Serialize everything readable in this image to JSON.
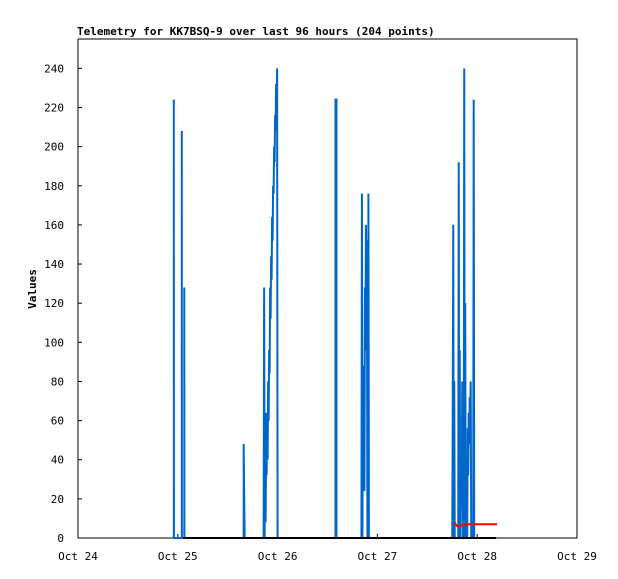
{
  "chart_data": {
    "type": "line",
    "title": "Telemetry for KK7BSQ-9 over last 96 hours (204 points)",
    "xlabel": "",
    "ylabel": "Values",
    "xlim": [
      "Oct 24",
      "Oct 29"
    ],
    "x_ticks": [
      "Oct 24",
      "Oct 25",
      "Oct 26",
      "Oct 27",
      "Oct 28",
      "Oct 29"
    ],
    "ylim": [
      0,
      255
    ],
    "y_ticks": [
      0,
      20,
      40,
      60,
      80,
      100,
      120,
      140,
      160,
      180,
      200,
      220,
      240
    ],
    "grid": false,
    "colors": {
      "series1": "#0066cc",
      "series2": "#000000",
      "series3": "#ff0000"
    },
    "series": [
      {
        "values": [
          {
            "x": 24.96,
            "y": 0
          },
          {
            "x": 24.96,
            "y": 224
          },
          {
            "x": 24.961,
            "y": 0
          },
          {
            "x": 25.04,
            "y": 0
          },
          {
            "x": 25.04,
            "y": 208
          },
          {
            "x": 25.041,
            "y": 0
          },
          {
            "x": 25.065,
            "y": 0
          },
          {
            "x": 25.065,
            "y": 128
          },
          {
            "x": 25.066,
            "y": 0
          },
          {
            "x": 25.66,
            "y": 0
          },
          {
            "x": 25.66,
            "y": 48
          },
          {
            "x": 25.665,
            "y": 24
          },
          {
            "x": 25.67,
            "y": 0
          },
          {
            "x": 25.86,
            "y": 0
          },
          {
            "x": 25.865,
            "y": 128
          },
          {
            "x": 25.87,
            "y": 0
          },
          {
            "x": 25.875,
            "y": 64
          },
          {
            "x": 25.88,
            "y": 8
          },
          {
            "x": 25.885,
            "y": 48
          },
          {
            "x": 25.89,
            "y": 32
          },
          {
            "x": 25.895,
            "y": 64
          },
          {
            "x": 25.9,
            "y": 40
          },
          {
            "x": 25.905,
            "y": 80
          },
          {
            "x": 25.91,
            "y": 60
          },
          {
            "x": 25.915,
            "y": 96
          },
          {
            "x": 25.92,
            "y": 84
          },
          {
            "x": 25.925,
            "y": 128
          },
          {
            "x": 25.93,
            "y": 112
          },
          {
            "x": 25.935,
            "y": 144
          },
          {
            "x": 25.94,
            "y": 132
          },
          {
            "x": 25.945,
            "y": 164
          },
          {
            "x": 25.95,
            "y": 152
          },
          {
            "x": 25.955,
            "y": 180
          },
          {
            "x": 25.96,
            "y": 176
          },
          {
            "x": 25.965,
            "y": 200
          },
          {
            "x": 25.97,
            "y": 192
          },
          {
            "x": 25.975,
            "y": 216
          },
          {
            "x": 25.98,
            "y": 208
          },
          {
            "x": 25.985,
            "y": 232
          },
          {
            "x": 25.99,
            "y": 224
          },
          {
            "x": 25.995,
            "y": 240
          },
          {
            "x": 26.0,
            "y": 0
          },
          {
            "x": 26.58,
            "y": 0
          },
          {
            "x": 26.58,
            "y": 224
          },
          {
            "x": 26.59,
            "y": 224
          },
          {
            "x": 26.59,
            "y": 0
          },
          {
            "x": 26.84,
            "y": 0
          },
          {
            "x": 26.845,
            "y": 176
          },
          {
            "x": 26.85,
            "y": 0
          },
          {
            "x": 26.855,
            "y": 88
          },
          {
            "x": 26.86,
            "y": 40
          },
          {
            "x": 26.865,
            "y": 80
          },
          {
            "x": 26.87,
            "y": 24
          },
          {
            "x": 26.875,
            "y": 128
          },
          {
            "x": 26.88,
            "y": 96
          },
          {
            "x": 26.885,
            "y": 160
          },
          {
            "x": 26.89,
            "y": 132
          },
          {
            "x": 26.895,
            "y": 152
          },
          {
            "x": 26.9,
            "y": 0
          },
          {
            "x": 26.905,
            "y": 0
          },
          {
            "x": 26.91,
            "y": 176
          },
          {
            "x": 26.915,
            "y": 0
          },
          {
            "x": 27.75,
            "y": 0
          },
          {
            "x": 27.755,
            "y": 64
          },
          {
            "x": 27.76,
            "y": 160
          },
          {
            "x": 27.765,
            "y": 0
          },
          {
            "x": 27.77,
            "y": 80
          },
          {
            "x": 27.775,
            "y": 0
          },
          {
            "x": 27.81,
            "y": 0
          },
          {
            "x": 27.815,
            "y": 192
          },
          {
            "x": 27.82,
            "y": 0
          },
          {
            "x": 27.825,
            "y": 96
          },
          {
            "x": 27.83,
            "y": 0
          },
          {
            "x": 27.84,
            "y": 48
          },
          {
            "x": 27.845,
            "y": 16
          },
          {
            "x": 27.85,
            "y": 80
          },
          {
            "x": 27.855,
            "y": 0
          },
          {
            "x": 27.865,
            "y": 0
          },
          {
            "x": 27.87,
            "y": 240
          },
          {
            "x": 27.875,
            "y": 0
          },
          {
            "x": 27.88,
            "y": 120
          },
          {
            "x": 27.885,
            "y": 0
          },
          {
            "x": 27.9,
            "y": 0
          },
          {
            "x": 27.905,
            "y": 56
          },
          {
            "x": 27.91,
            "y": 32
          },
          {
            "x": 27.915,
            "y": 64
          },
          {
            "x": 27.92,
            "y": 48
          },
          {
            "x": 27.925,
            "y": 72
          },
          {
            "x": 27.93,
            "y": 64
          },
          {
            "x": 27.935,
            "y": 80
          },
          {
            "x": 27.94,
            "y": 0
          },
          {
            "x": 27.96,
            "y": 0
          },
          {
            "x": 27.965,
            "y": 224
          },
          {
            "x": 27.97,
            "y": 0
          }
        ]
      },
      {
        "values": [
          {
            "x": 25.05,
            "y": 0
          },
          {
            "x": 28.19,
            "y": 0
          }
        ]
      },
      {
        "values": [
          {
            "x": 27.77,
            "y": 8
          },
          {
            "x": 27.8,
            "y": 6
          },
          {
            "x": 27.9,
            "y": 7
          },
          {
            "x": 28.0,
            "y": 7
          },
          {
            "x": 28.1,
            "y": 7
          },
          {
            "x": 28.2,
            "y": 7
          }
        ]
      }
    ]
  }
}
